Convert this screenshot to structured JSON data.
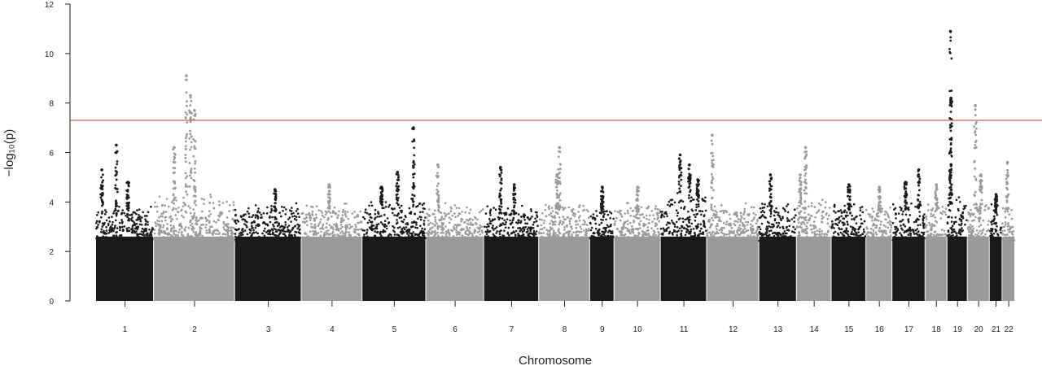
{
  "chart_data": {
    "type": "scatter",
    "subtype": "manhattan",
    "title": "",
    "xlabel": "Chromosome",
    "ylabel": "−log₁₀(p)",
    "ylim": [
      0,
      12
    ],
    "yticks": [
      0,
      2,
      4,
      6,
      8,
      10,
      12
    ],
    "grid": false,
    "legend": "none",
    "significance_line": {
      "y": 7.3,
      "color": "#e8423f"
    },
    "series_colors": [
      "#1a1a1a",
      "#9a9a9a"
    ],
    "chromosomes": [
      {
        "label": "1",
        "start": 0,
        "end": 100,
        "base_max": 3.5,
        "peaks": [
          {
            "pos": 0.35,
            "y": 6.3
          },
          {
            "pos": 0.1,
            "y": 5.3
          },
          {
            "pos": 0.55,
            "y": 4.8
          }
        ]
      },
      {
        "label": "2",
        "start": 100,
        "end": 240,
        "base_max": 3.9,
        "peaks": [
          {
            "pos": 0.4,
            "y": 9.1
          },
          {
            "pos": 0.45,
            "y": 8.3
          },
          {
            "pos": 0.5,
            "y": 7.7
          },
          {
            "pos": 0.25,
            "y": 6.2
          }
        ]
      },
      {
        "label": "3",
        "start": 240,
        "end": 355,
        "base_max": 3.6,
        "peaks": [
          {
            "pos": 0.6,
            "y": 4.5
          }
        ]
      },
      {
        "label": "4",
        "start": 355,
        "end": 460,
        "base_max": 3.6,
        "peaks": [
          {
            "pos": 0.45,
            "y": 4.7
          }
        ]
      },
      {
        "label": "5",
        "start": 460,
        "end": 570,
        "base_max": 3.8,
        "peaks": [
          {
            "pos": 0.8,
            "y": 7.0
          },
          {
            "pos": 0.55,
            "y": 5.2
          },
          {
            "pos": 0.3,
            "y": 4.6
          }
        ]
      },
      {
        "label": "6",
        "start": 570,
        "end": 670,
        "base_max": 3.6,
        "peaks": [
          {
            "pos": 0.2,
            "y": 5.5
          }
        ]
      },
      {
        "label": "7",
        "start": 670,
        "end": 765,
        "base_max": 3.5,
        "peaks": [
          {
            "pos": 0.3,
            "y": 5.4
          },
          {
            "pos": 0.55,
            "y": 4.7
          }
        ]
      },
      {
        "label": "8",
        "start": 765,
        "end": 853,
        "base_max": 3.6,
        "peaks": [
          {
            "pos": 0.4,
            "y": 6.2
          },
          {
            "pos": 0.35,
            "y": 5.1
          }
        ]
      },
      {
        "label": "9",
        "start": 853,
        "end": 895,
        "base_max": 3.5,
        "peaks": [
          {
            "pos": 0.5,
            "y": 4.6
          }
        ]
      },
      {
        "label": "10",
        "start": 895,
        "end": 975,
        "base_max": 3.6,
        "peaks": [
          {
            "pos": 0.5,
            "y": 4.6
          }
        ]
      },
      {
        "label": "11",
        "start": 975,
        "end": 1055,
        "base_max": 4.0,
        "peaks": [
          {
            "pos": 0.42,
            "y": 5.9
          },
          {
            "pos": 0.62,
            "y": 5.5
          },
          {
            "pos": 0.8,
            "y": 4.9
          }
        ]
      },
      {
        "label": "12",
        "start": 1055,
        "end": 1145,
        "base_max": 3.6,
        "peaks": [
          {
            "pos": 0.1,
            "y": 6.7
          }
        ]
      },
      {
        "label": "13",
        "start": 1145,
        "end": 1210,
        "base_max": 3.6,
        "peaks": [
          {
            "pos": 0.3,
            "y": 5.1
          }
        ]
      },
      {
        "label": "14",
        "start": 1210,
        "end": 1270,
        "base_max": 3.7,
        "peaks": [
          {
            "pos": 0.25,
            "y": 6.2
          },
          {
            "pos": 0.1,
            "y": 5.1
          }
        ]
      },
      {
        "label": "15",
        "start": 1270,
        "end": 1330,
        "base_max": 3.6,
        "peaks": [
          {
            "pos": 0.5,
            "y": 4.7
          }
        ]
      },
      {
        "label": "16",
        "start": 1330,
        "end": 1375,
        "base_max": 3.6,
        "peaks": [
          {
            "pos": 0.5,
            "y": 4.6
          }
        ]
      },
      {
        "label": "17",
        "start": 1375,
        "end": 1432,
        "base_max": 3.7,
        "peaks": [
          {
            "pos": 0.8,
            "y": 5.3
          },
          {
            "pos": 0.4,
            "y": 4.8
          }
        ]
      },
      {
        "label": "18",
        "start": 1432,
        "end": 1470,
        "base_max": 3.6,
        "peaks": [
          {
            "pos": 0.5,
            "y": 4.7
          }
        ]
      },
      {
        "label": "19",
        "start": 1470,
        "end": 1505,
        "base_max": 3.9,
        "peaks": [
          {
            "pos": 0.15,
            "y": 10.9
          },
          {
            "pos": 0.18,
            "y": 8.2
          },
          {
            "pos": 0.15,
            "y": 6.0
          }
        ]
      },
      {
        "label": "20",
        "start": 1505,
        "end": 1543,
        "base_max": 3.6,
        "peaks": [
          {
            "pos": 0.35,
            "y": 7.9
          },
          {
            "pos": 0.6,
            "y": 5.1
          }
        ]
      },
      {
        "label": "21",
        "start": 1543,
        "end": 1565,
        "base_max": 3.6,
        "peaks": [
          {
            "pos": 0.5,
            "y": 4.3
          }
        ]
      },
      {
        "label": "22",
        "start": 1565,
        "end": 1587,
        "base_max": 3.6,
        "peaks": [
          {
            "pos": 0.4,
            "y": 5.6
          }
        ]
      }
    ]
  }
}
